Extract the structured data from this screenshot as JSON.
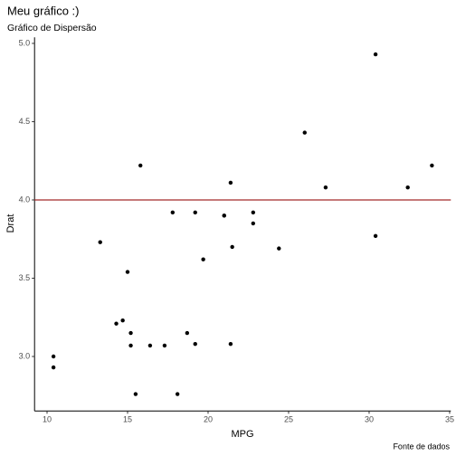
{
  "chart_data": {
    "type": "scatter",
    "title": "Meu gráfico :)",
    "subtitle": "Gráfico de Dispersão",
    "x_label": "MPG",
    "y_label": "Drat",
    "caption": "Fonte de dados",
    "x": [
      21.0,
      21.0,
      22.8,
      21.4,
      18.7,
      18.1,
      14.3,
      24.4,
      22.8,
      19.2,
      17.8,
      16.4,
      17.3,
      15.2,
      10.4,
      10.4,
      14.7,
      32.4,
      30.4,
      33.9,
      21.5,
      15.5,
      15.2,
      13.3,
      19.2,
      27.3,
      26.0,
      30.4,
      15.8,
      19.7,
      15.0,
      21.4
    ],
    "values": [
      3.9,
      3.9,
      3.85,
      3.08,
      3.15,
      2.76,
      3.21,
      3.69,
      3.92,
      3.92,
      3.92,
      3.07,
      3.07,
      3.07,
      2.93,
      3.0,
      3.23,
      4.08,
      4.93,
      4.22,
      3.7,
      2.76,
      3.15,
      3.73,
      3.08,
      4.08,
      4.43,
      3.77,
      4.22,
      3.62,
      3.54,
      4.11
    ],
    "color": "#000000",
    "hline": {
      "value": 4,
      "color": "#a52a2a"
    },
    "xlim": [
      9.225,
      35.075
    ],
    "ylim": [
      2.6515,
      5.0385
    ],
    "xticks": [
      10,
      15,
      20,
      25,
      30,
      35
    ],
    "yticks": [
      {
        "value": 3,
        "label": "3.0"
      },
      3.5,
      {
        "value": 4,
        "label": "4.0"
      },
      4.5,
      {
        "value": 5,
        "label": "5.0"
      }
    ]
  }
}
